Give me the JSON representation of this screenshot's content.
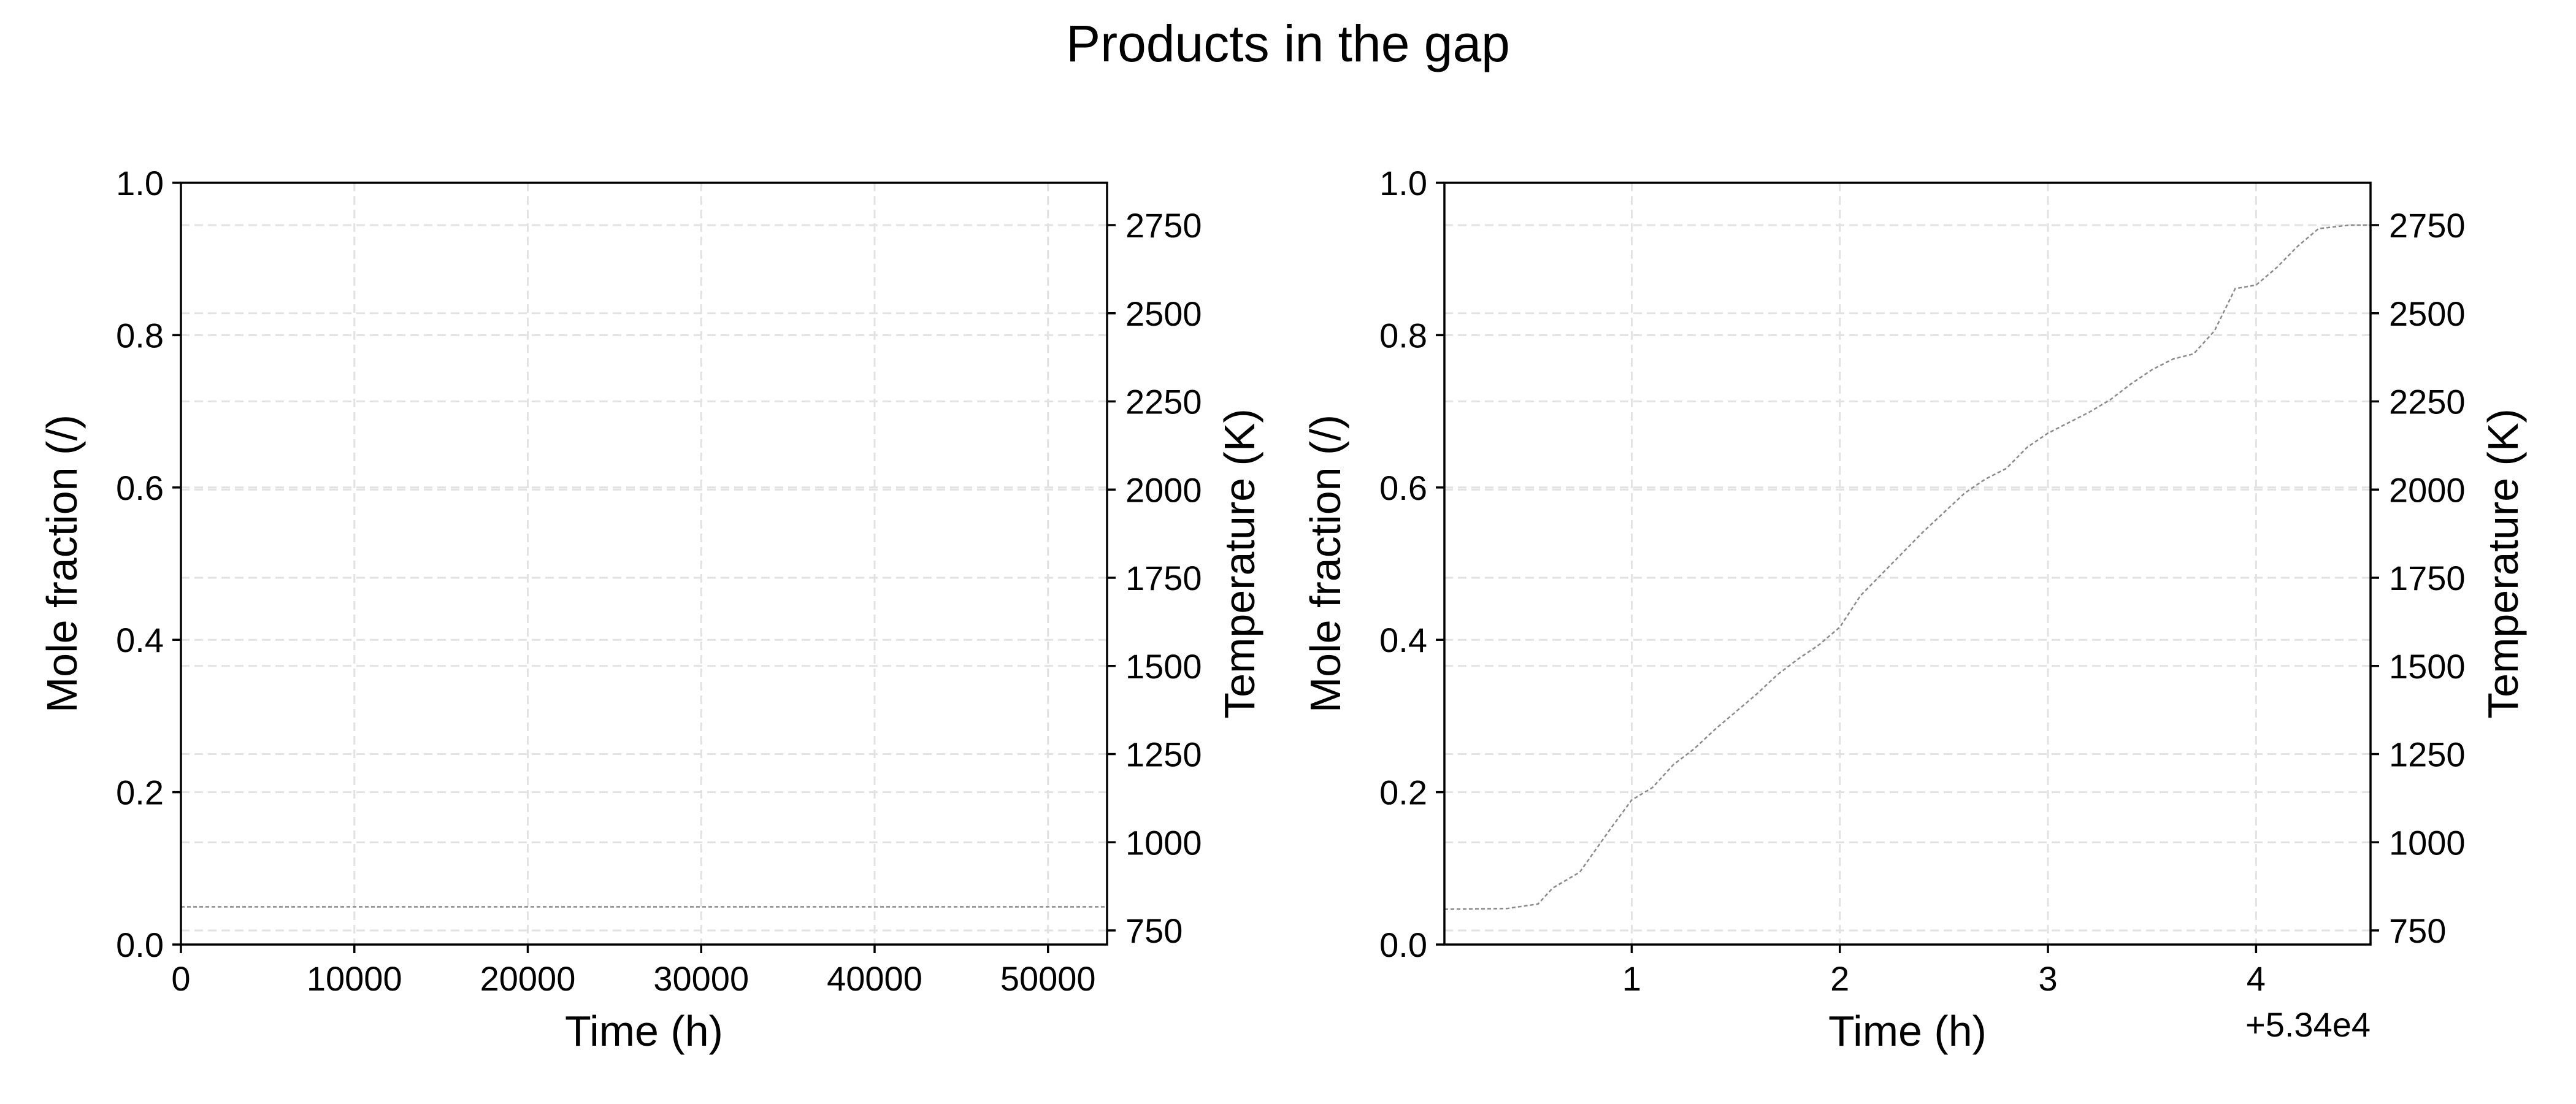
{
  "figure_title": "Products in the gap",
  "chart_data": [
    {
      "type": "line",
      "xlabel": "Time (h)",
      "ylabel": "Mole fraction (/)",
      "y2label": "Temperature (K)",
      "xlim": [
        0,
        53405
      ],
      "ylim": [
        0,
        1
      ],
      "y2lim": [
        710,
        2870
      ],
      "xticks": [
        0,
        10000,
        20000,
        30000,
        40000,
        50000
      ],
      "xticklabels": [
        "0",
        "10000",
        "20000",
        "30000",
        "40000",
        "50000"
      ],
      "yticks": [
        0,
        0.2,
        0.4,
        0.6,
        0.8,
        1.0
      ],
      "yticklabels": [
        "0.0",
        "0.2",
        "0.4",
        "0.6",
        "0.8",
        "1.0"
      ],
      "y2ticks": [
        750,
        1000,
        1250,
        1500,
        1750,
        2000,
        2250,
        2500,
        2750
      ],
      "y2ticklabels": [
        "750",
        "1000",
        "1250",
        "1500",
        "1750",
        "2000",
        "2250",
        "2500",
        "2750"
      ],
      "grid": true,
      "series": [
        {
          "axis": "y2",
          "color": "#8a8a8a",
          "style": "dashed",
          "x": [
            0,
            53400
          ],
          "y": [
            817,
            817
          ]
        }
      ]
    },
    {
      "type": "line",
      "xlabel": "Time (h)",
      "ylabel": "Mole fraction (/)",
      "y2label": "Temperature (K)",
      "x_offset_label": "+5.34e4",
      "xlim": [
        0.1,
        4.55
      ],
      "ylim": [
        0,
        1
      ],
      "y2lim": [
        710,
        2870
      ],
      "xticks": [
        1,
        2,
        3,
        4
      ],
      "xticklabels": [
        "1",
        "2",
        "3",
        "4"
      ],
      "yticks": [
        0,
        0.2,
        0.4,
        0.6,
        0.8,
        1.0
      ],
      "yticklabels": [
        "0.0",
        "0.2",
        "0.4",
        "0.6",
        "0.8",
        "1.0"
      ],
      "y2ticks": [
        750,
        1000,
        1250,
        1500,
        1750,
        2000,
        2250,
        2500,
        2750
      ],
      "y2ticklabels": [
        "750",
        "1000",
        "1250",
        "1500",
        "1750",
        "2000",
        "2250",
        "2500",
        "2750"
      ],
      "grid": true,
      "series": [
        {
          "axis": "y2",
          "color": "#8a8a8a",
          "style": "dashed",
          "x": [
            0.1,
            0.4,
            0.55,
            0.62,
            0.75,
            0.9,
            1.0,
            1.1,
            1.2,
            1.3,
            1.4,
            1.5,
            1.6,
            1.7,
            1.8,
            1.9,
            2.0,
            2.1,
            2.2,
            2.3,
            2.4,
            2.5,
            2.6,
            2.7,
            2.8,
            2.9,
            3.0,
            3.1,
            3.2,
            3.3,
            3.4,
            3.5,
            3.6,
            3.7,
            3.8,
            3.9,
            4.0,
            4.1,
            4.2,
            4.3,
            4.45,
            4.55
          ],
          "y": [
            810,
            812,
            825,
            870,
            915,
            1040,
            1120,
            1155,
            1220,
            1265,
            1320,
            1370,
            1420,
            1475,
            1520,
            1560,
            1610,
            1700,
            1760,
            1820,
            1880,
            1935,
            1990,
            2030,
            2060,
            2120,
            2160,
            2190,
            2220,
            2255,
            2300,
            2340,
            2370,
            2385,
            2450,
            2570,
            2580,
            2630,
            2690,
            2740,
            2750,
            2750
          ]
        }
      ]
    }
  ]
}
